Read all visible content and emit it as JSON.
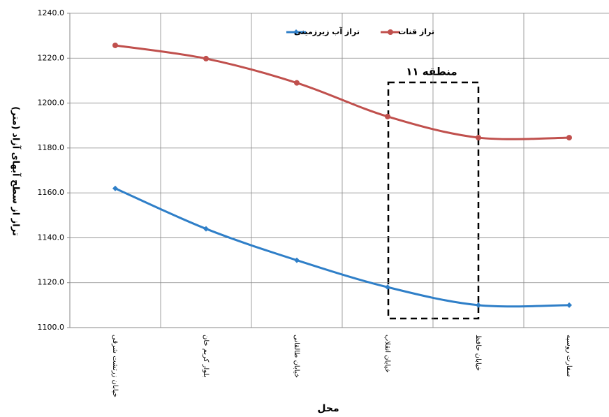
{
  "chart_data": {
    "type": "line",
    "ylabel": "تراز از سطح آبهای آزاد (متر)",
    "xlabel": "محل",
    "annotation": "منطقه ۱۱",
    "categories": [
      "خیابان زرتشت شرقی",
      "بلوار کریم خان",
      "خیابان طالقانی",
      "خیابان انقلاب",
      "خیابان حافظ",
      "سفارت روسیه"
    ],
    "series": [
      {
        "name": "تراز آب زیرزمینی",
        "color": "#2f7fc8",
        "marker": "diamond",
        "values": [
          1162,
          1144,
          1130,
          1118,
          1110,
          1110
        ]
      },
      {
        "name": "تراز قنات",
        "color": "#c0504d",
        "marker": "circle",
        "values": [
          1225.7,
          1219.8,
          1209,
          1194,
          1184.6,
          1184.6
        ]
      }
    ],
    "ylim": [
      1100,
      1240
    ],
    "yticks": [
      {
        "value": 1100,
        "label": "1100.0"
      },
      {
        "value": 1120,
        "label": "1120.0"
      },
      {
        "value": 1140,
        "label": "1140.0"
      },
      {
        "value": 1160,
        "label": "1160.0"
      },
      {
        "value": 1180,
        "label": "1180.0"
      },
      {
        "value": 1200,
        "label": "1200.0"
      },
      {
        "value": 1220,
        "label": "1220.0"
      },
      {
        "value": 1240,
        "label": "1240.0"
      }
    ],
    "grid": true,
    "legend": "top"
  }
}
